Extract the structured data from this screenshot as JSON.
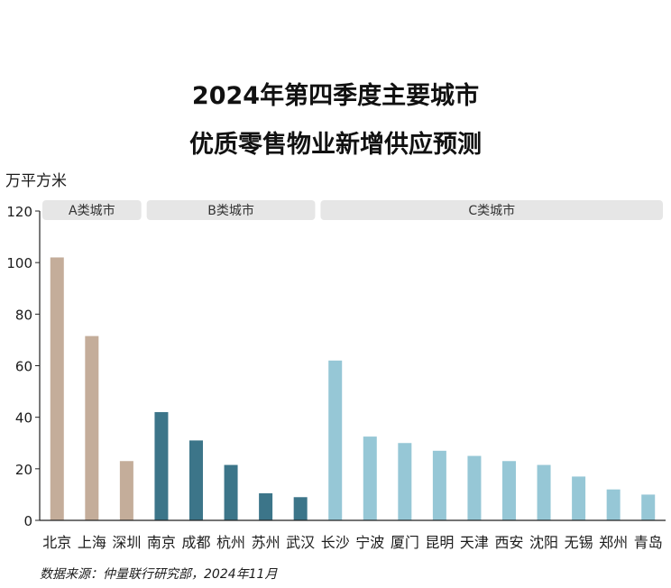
{
  "title_line1": "2024年第四季度主要城市",
  "title_line2": "优质零售物业新增供应预测",
  "unit": "万平方米",
  "source": "数据来源：仲量联行研究部，2024年11月",
  "colors": {
    "A": "#c4ad9a",
    "B": "#3c7589",
    "C": "#96c7d6",
    "group_bg": "#e6e6e6",
    "axis": "#222222"
  },
  "chart_data": {
    "type": "bar",
    "ylim": [
      0,
      120
    ],
    "yticks": [
      0,
      20,
      40,
      60,
      80,
      100,
      120
    ],
    "groups": [
      {
        "label": "A类城市",
        "key": "A",
        "start": 0,
        "end": 2
      },
      {
        "label": "B类城市",
        "key": "B",
        "start": 3,
        "end": 7
      },
      {
        "label": "C类城市",
        "key": "C",
        "start": 8,
        "end": 17
      }
    ],
    "categories": [
      "北京",
      "上海",
      "深圳",
      "南京",
      "成都",
      "杭州",
      "苏州",
      "武汉",
      "长沙",
      "宁波",
      "厦门",
      "昆明",
      "天津",
      "西安",
      "沈阳",
      "无锡",
      "郑州",
      "青岛"
    ],
    "values": [
      102,
      71.5,
      23,
      42,
      31,
      21.5,
      10.5,
      9,
      62,
      32.5,
      30,
      27,
      25,
      23,
      21.5,
      17,
      12,
      10
    ]
  }
}
